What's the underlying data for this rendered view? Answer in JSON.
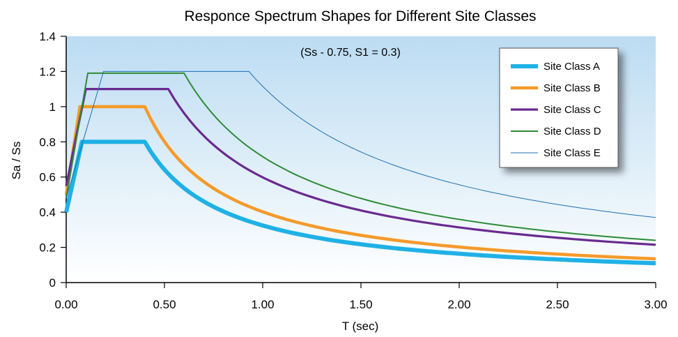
{
  "chart_data": {
    "type": "line",
    "title": "Responce Spectrum Shapes for Different Site Classes",
    "annotation": "(Ss - 0.75, S1 = 0.3)",
    "xlabel": "T (sec)",
    "ylabel": "Sa / Ss",
    "xlim": [
      0,
      3
    ],
    "ylim": [
      0,
      1.4
    ],
    "x_ticks": [
      0,
      0.5,
      1,
      1.5,
      2,
      2.5,
      3
    ],
    "x_tick_labels": [
      "0.00",
      "0.50",
      "1.00",
      "1.50",
      "2.00",
      "2.50",
      "3.00"
    ],
    "y_ticks": [
      0,
      0.2,
      0.4,
      0.6,
      0.8,
      1,
      1.2,
      1.4
    ],
    "y_tick_labels": [
      "0",
      "0.2",
      "0.4",
      "0.6",
      "0.8",
      "1",
      "1.2",
      "1.4"
    ],
    "grid": false,
    "legend_position": "top-right",
    "series": [
      {
        "name": "Site Class A",
        "color": "#1fb1e6",
        "pga": 0.4,
        "plateau": 0.8,
        "t0": 0.08,
        "ts": 0.4,
        "tail_end": 0.11
      },
      {
        "name": "Site Class B",
        "color": "#f49a2a",
        "pga": 0.5,
        "plateau": 1.0,
        "t0": 0.07,
        "ts": 0.4,
        "tail_end": 0.135
      },
      {
        "name": "Site Class C",
        "color": "#6a2a8f",
        "pga": 0.55,
        "plateau": 1.1,
        "t0": 0.1,
        "ts": 0.52,
        "tail_end": 0.215
      },
      {
        "name": "Site Class D",
        "color": "#2e8b36",
        "pga": 0.48,
        "plateau": 1.19,
        "t0": 0.11,
        "ts": 0.6,
        "tail_end": 0.24
      },
      {
        "name": "Site Class E",
        "color": "#1a6fb0",
        "pga": 0.48,
        "plateau": 1.2,
        "t0": 0.19,
        "ts": 0.93,
        "tail_end": 0.37
      }
    ]
  }
}
